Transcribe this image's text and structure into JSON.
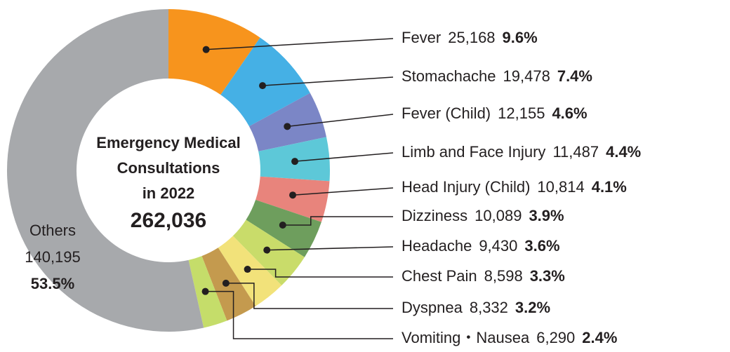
{
  "chart_data": {
    "type": "donut",
    "center_text": [
      "Emergency Medical",
      "Consultations",
      "in 2022"
    ],
    "total": 262036,
    "total_label": "262,036",
    "categories": [
      "Fever",
      "Stomachache",
      "Fever (Child)",
      "Limb and Face Injury",
      "Head Injury (Child)",
      "Dizziness",
      "Headache",
      "Chest Pain",
      "Dyspnea",
      "Vomiting・Nausea",
      "Others"
    ],
    "values": [
      25168,
      19478,
      12155,
      11487,
      10814,
      10089,
      9430,
      8598,
      8332,
      6290,
      140195
    ],
    "value_labels": [
      "25,168",
      "19,478",
      "12,155",
      "11,487",
      "10,814",
      "10,089",
      "9,430",
      "8,598",
      "8,332",
      "6,290",
      "140,195"
    ],
    "shares": [
      9.6,
      7.4,
      4.6,
      4.4,
      4.1,
      3.9,
      3.6,
      3.3,
      3.2,
      2.4,
      53.5
    ],
    "share_labels": [
      "9.6%",
      "7.4%",
      "4.6%",
      "4.4%",
      "4.1%",
      "3.9%",
      "3.6%",
      "3.3%",
      "3.2%",
      "2.4%",
      "53.5%"
    ],
    "colors": [
      "#f7941d",
      "#45b0e5",
      "#7b86c6",
      "#5dc8d8",
      "#e8847c",
      "#6e9e5d",
      "#c9dc6a",
      "#f2e27a",
      "#c49a4e",
      "#c5dd6a",
      "#a7a9ac"
    ]
  }
}
